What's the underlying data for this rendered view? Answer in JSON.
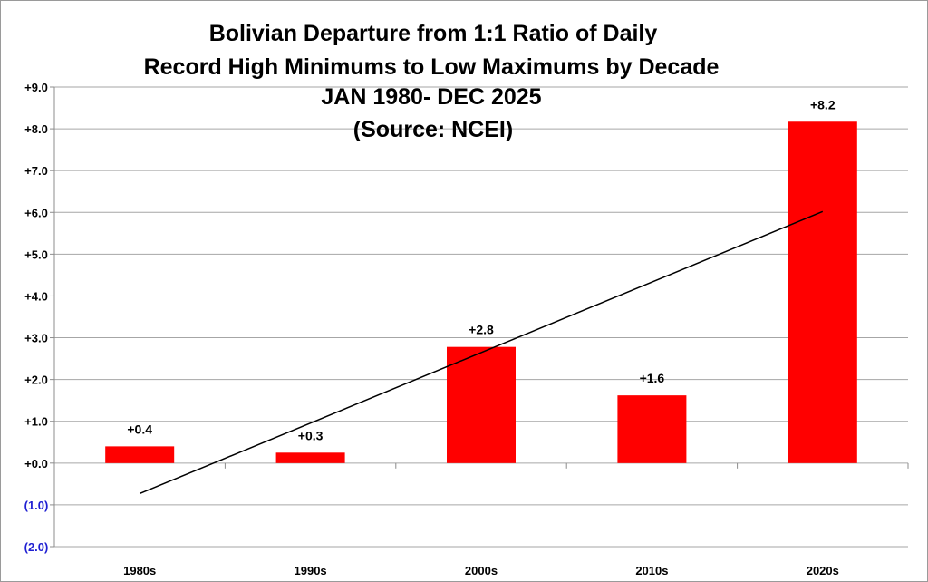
{
  "chart_data": {
    "type": "bar",
    "title_lines": [
      "Bolivian Departure from 1:1 Ratio of Daily",
      "Record High Minimums to Low Maximums by Decade",
      "JAN 1980- DEC 2025",
      "(Source: NCEI)"
    ],
    "categories": [
      "1980s",
      "1990s",
      "2000s",
      "2010s",
      "2020s"
    ],
    "values": [
      0.4,
      0.25,
      2.78,
      1.62,
      8.17
    ],
    "data_labels": [
      "+0.4",
      "+0.3",
      "+2.8",
      "+1.6",
      "+8.2"
    ],
    "ylim": [
      -2,
      9
    ],
    "y_ticks": [
      {
        "value": 9,
        "label": "+9.0"
      },
      {
        "value": 8,
        "label": "+8.0"
      },
      {
        "value": 7,
        "label": "+7.0"
      },
      {
        "value": 6,
        "label": "+6.0"
      },
      {
        "value": 5,
        "label": "+5.0"
      },
      {
        "value": 4,
        "label": "+4.0"
      },
      {
        "value": 3,
        "label": "+3.0"
      },
      {
        "value": 2,
        "label": "+2.0"
      },
      {
        "value": 1,
        "label": "+1.0"
      },
      {
        "value": 0,
        "label": "+0.0"
      },
      {
        "value": -1,
        "label": "(1.0)"
      },
      {
        "value": -2,
        "label": "(2.0)"
      }
    ],
    "trendline": {
      "start": -0.73,
      "end": 6.02
    },
    "grid": true,
    "legend": "none",
    "xlabel": "",
    "ylabel": ""
  },
  "colors": {
    "bar": "#ff0000",
    "grid": "#a6a6a6",
    "trendline": "#000000",
    "positive_tick": "#000000",
    "negative_tick": "#1f1fd2"
  }
}
